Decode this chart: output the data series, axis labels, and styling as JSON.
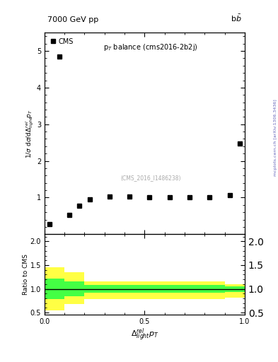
{
  "title_left": "7000 GeV pp",
  "title_right": "b$\\bar{b}$",
  "subtitle": "p$_{T}$ balance (cms2016-2b2j)",
  "watermark": "(CMS_2016_I1486238)",
  "xlabel": "$\\Delta^{rel}_{light}p_{T}$",
  "ylabel_main": "1/$\\sigma$ d$\\sigma$/d$\\Delta^{rel}_{light}p_{T}$",
  "ylabel_ratio": "Ratio to CMS",
  "right_label": "mcplots.cern.ch [arXiv:1306.3436]",
  "cms_label": "CMS",
  "data_x": [
    0.025,
    0.075,
    0.125,
    0.175,
    0.225,
    0.325,
    0.425,
    0.525,
    0.625,
    0.725,
    0.825,
    0.925,
    0.975
  ],
  "data_y": [
    0.28,
    4.85,
    0.52,
    0.78,
    0.95,
    1.02,
    1.02,
    1.01,
    1.01,
    1.01,
    1.0,
    1.07,
    2.48
  ],
  "ylim_main": [
    0,
    5.5
  ],
  "ylim_ratio": [
    0.45,
    2.15
  ],
  "yticks_main": [
    1,
    2,
    3,
    4,
    5
  ],
  "yticks_ratio": [
    0.5,
    1.0,
    1.5,
    2.0
  ],
  "xlim": [
    0,
    1.0
  ],
  "xticks": [
    0,
    0.5,
    1.0
  ],
  "yellow_color": "#ffff44",
  "green_color": "#44ff44",
  "line_color": "black"
}
